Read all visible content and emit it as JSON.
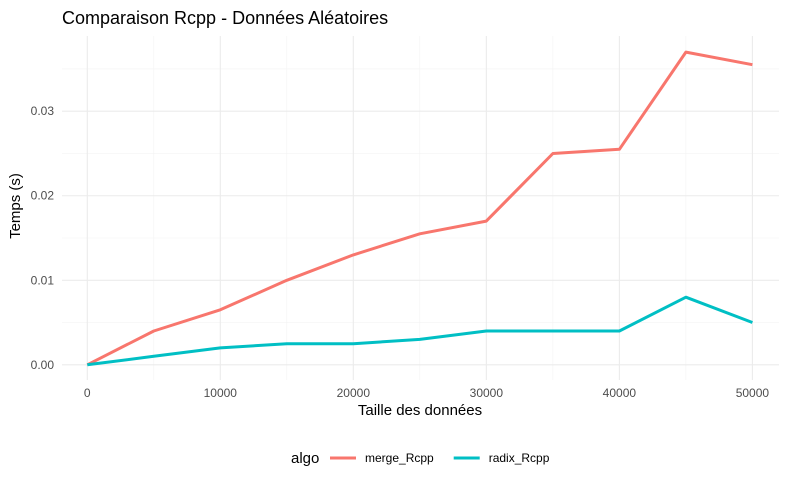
{
  "chart_data": {
    "type": "line",
    "title": "Comparaison Rcpp - Données Aléatoires",
    "xlabel": "Taille des données",
    "ylabel": "Temps (s)",
    "x": [
      0,
      5000,
      10000,
      15000,
      20000,
      25000,
      30000,
      35000,
      40000,
      45000,
      50000
    ],
    "xticks": [
      0,
      10000,
      20000,
      30000,
      40000,
      50000
    ],
    "xtick_labels": [
      "0",
      "10000",
      "20000",
      "30000",
      "40000",
      "50000"
    ],
    "yticks": [
      0,
      0.01,
      0.02,
      0.03
    ],
    "ytick_labels": [
      "0.00",
      "0.01",
      "0.02",
      "0.03"
    ],
    "xlim": [
      -1900,
      52000
    ],
    "ylim": [
      -0.0018,
      0.0389
    ],
    "grid": true,
    "legend_title": "algo",
    "legend_position": "bottom",
    "series": [
      {
        "name": "merge_Rcpp",
        "color": "#F8766D",
        "values": [
          0.0,
          0.004,
          0.0065,
          0.01,
          0.013,
          0.0155,
          0.017,
          0.025,
          0.0255,
          0.037,
          0.0355
        ]
      },
      {
        "name": "radix_Rcpp",
        "color": "#00BFC4",
        "values": [
          0.0,
          0.001,
          0.002,
          0.0025,
          0.0025,
          0.003,
          0.004,
          0.004,
          0.004,
          0.008,
          0.005
        ]
      }
    ]
  }
}
